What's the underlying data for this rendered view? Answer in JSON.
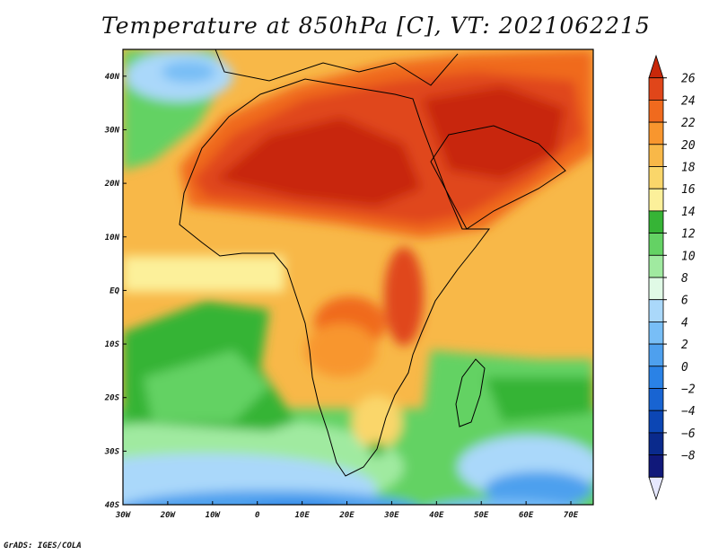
{
  "title": "Temperature at 850hPa [C], VT: 2021062215",
  "credit": "GrADS: IGES/COLA",
  "map": {
    "lon_range": [
      -30,
      75
    ],
    "lat_range": [
      -40,
      45
    ],
    "lat_ticks": [
      {
        "value": 40,
        "label": "40N"
      },
      {
        "value": 30,
        "label": "30N"
      },
      {
        "value": 20,
        "label": "20N"
      },
      {
        "value": 10,
        "label": "10N"
      },
      {
        "value": 0,
        "label": "EQ"
      },
      {
        "value": -10,
        "label": "10S"
      },
      {
        "value": -20,
        "label": "20S"
      },
      {
        "value": -30,
        "label": "30S"
      },
      {
        "value": -40,
        "label": "40S"
      }
    ],
    "lon_ticks": [
      {
        "value": -30,
        "label": "30W"
      },
      {
        "value": -20,
        "label": "20W"
      },
      {
        "value": -10,
        "label": "10W"
      },
      {
        "value": 0,
        "label": "0"
      },
      {
        "value": 10,
        "label": "10E"
      },
      {
        "value": 20,
        "label": "20E"
      },
      {
        "value": 30,
        "label": "30E"
      },
      {
        "value": 40,
        "label": "40E"
      },
      {
        "value": 50,
        "label": "50E"
      },
      {
        "value": 60,
        "label": "60E"
      },
      {
        "value": 70,
        "label": "70E"
      }
    ]
  },
  "colorbar": {
    "levels": [
      26,
      24,
      22,
      20,
      18,
      16,
      14,
      12,
      10,
      8,
      6,
      4,
      2,
      0,
      -2,
      -4,
      -6,
      -8
    ],
    "colors": [
      "#c8280a",
      "#e0461a",
      "#f06a1e",
      "#f8962e",
      "#f8b848",
      "#fad66a",
      "#fcf09a",
      "#36b436",
      "#64d264",
      "#a0eaa0",
      "#e0fae6",
      "#aad8fa",
      "#78bef6",
      "#4ea0ee",
      "#2a82e6",
      "#1864d2",
      "#0c46b4",
      "#0a2a8c",
      "#10187a",
      "#e6e8ff"
    ]
  }
}
